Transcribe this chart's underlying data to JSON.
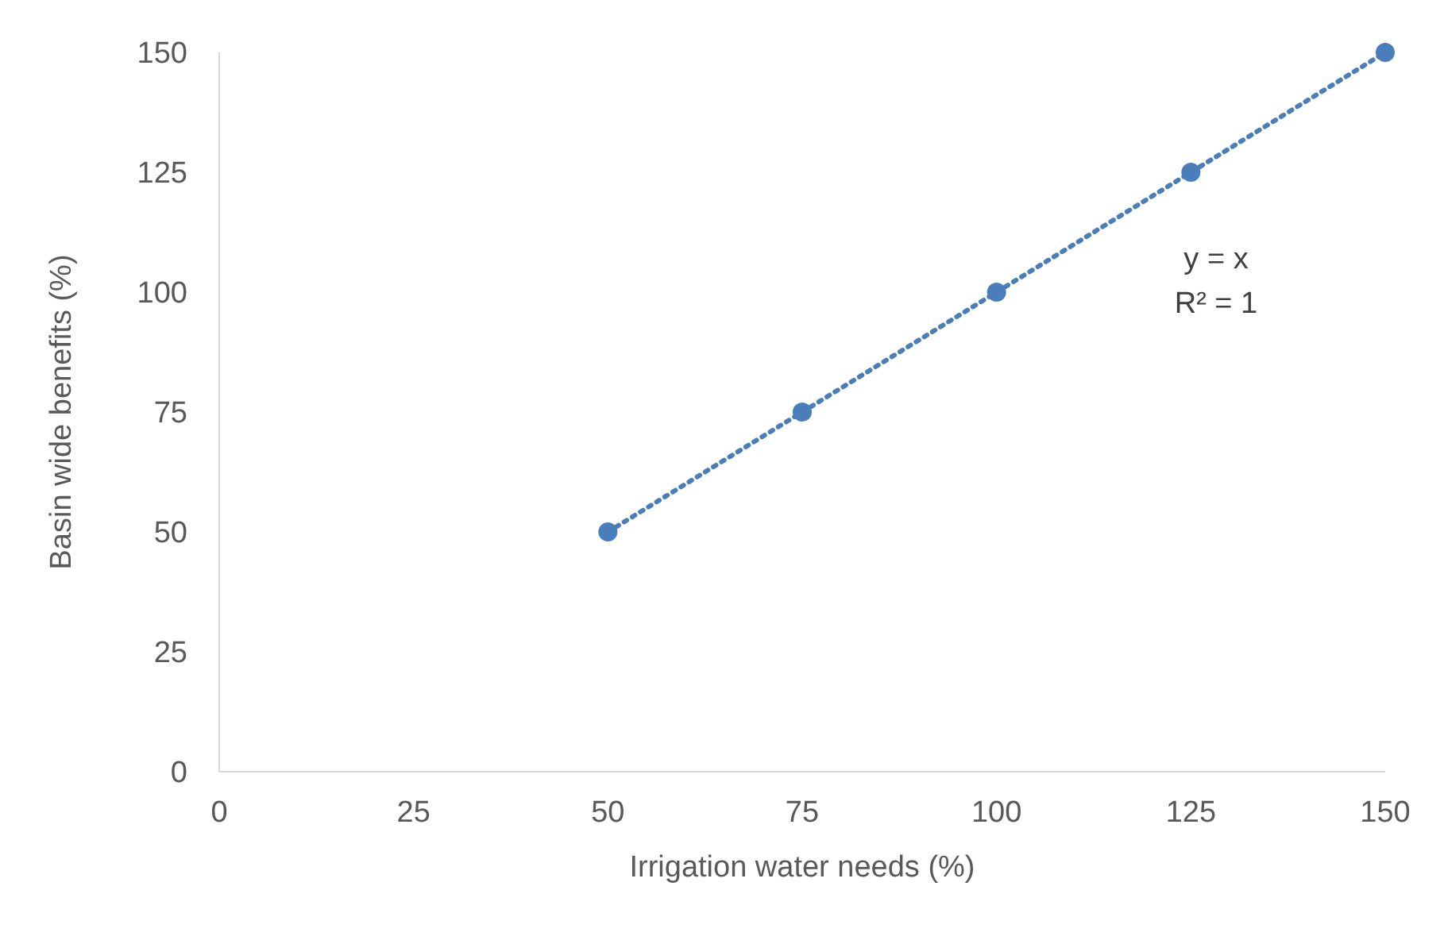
{
  "chart_data": {
    "type": "scatter",
    "xlabel": "Irrigation water needs (%)",
    "ylabel": "Basin wide benefits (%)",
    "x": [
      50,
      75,
      100,
      125,
      150
    ],
    "series": [
      {
        "color": "#4a7ebb",
        "values": [
          50,
          75,
          100,
          125,
          150
        ],
        "marker": "circle"
      },
      {
        "type": "line",
        "color": "#4a7ebb",
        "x": [
          50,
          150
        ],
        "values": [
          50,
          150
        ],
        "marker": "none",
        "line_style": "dotted"
      }
    ],
    "xlim": [
      0,
      150
    ],
    "xticks": [
      0,
      25,
      50,
      75,
      100,
      125,
      150
    ],
    "ylim": [
      0,
      150
    ],
    "yticks": [
      0,
      25,
      50,
      75,
      100,
      125,
      150
    ],
    "grid": false,
    "legend": false,
    "annotations": [
      "y = x",
      "R² = 1"
    ]
  }
}
